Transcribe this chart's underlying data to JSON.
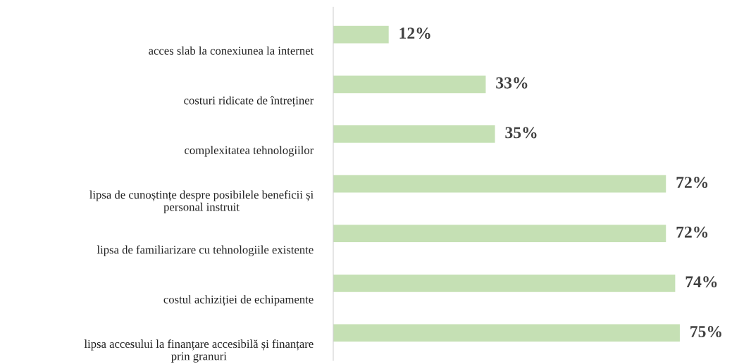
{
  "chart_data": {
    "type": "bar",
    "orientation": "horizontal",
    "categories": [
      "acces slab la conexiunea la internet",
      "costuri ridicate de întreținer",
      "complexitatea tehnologiilor",
      "lipsa de cunoștințe despre posibilele beneficii și\npersonal instruit",
      "lipsa de familiarizare cu tehnologiile existente",
      "costul achiziției de echipamente",
      "lipsa accesului la finanțare accesibilă și finanțare\nprin granuri"
    ],
    "values": [
      12,
      33,
      35,
      72,
      72,
      74,
      75
    ],
    "value_labels": [
      "12%",
      "33%",
      "35%",
      "72%",
      "72%",
      "74%",
      "75%"
    ],
    "color": "#c5e0b4",
    "grid": false,
    "legend": false
  }
}
